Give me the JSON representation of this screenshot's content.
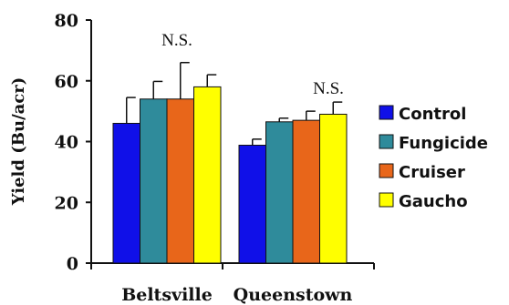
{
  "chart_data": {
    "type": "bar",
    "ylabel": "Yield (Bu/acr)",
    "xlabel": "",
    "ylim": [
      0,
      80
    ],
    "yticks": [
      0,
      20,
      40,
      60,
      80
    ],
    "categories": [
      "Beltsville",
      "Queenstown"
    ],
    "series": [
      {
        "name": "Control",
        "color": "#1010e8",
        "values": [
          46,
          38.8
        ],
        "errors": [
          8.5,
          2
        ]
      },
      {
        "name": "Fungicide",
        "color": "#2f8b9b",
        "values": [
          54,
          46.5
        ],
        "errors": [
          5.8,
          1.2
        ]
      },
      {
        "name": "Cruiser",
        "color": "#e8661a",
        "values": [
          54,
          47
        ],
        "errors": [
          12,
          3
        ]
      },
      {
        "name": "Gaucho",
        "color": "#ffff00",
        "values": [
          58,
          49
        ],
        "errors": [
          4,
          4
        ]
      }
    ],
    "annotations": [
      "N.S.",
      "N.S."
    ],
    "legend_position": "right",
    "grid": false
  }
}
